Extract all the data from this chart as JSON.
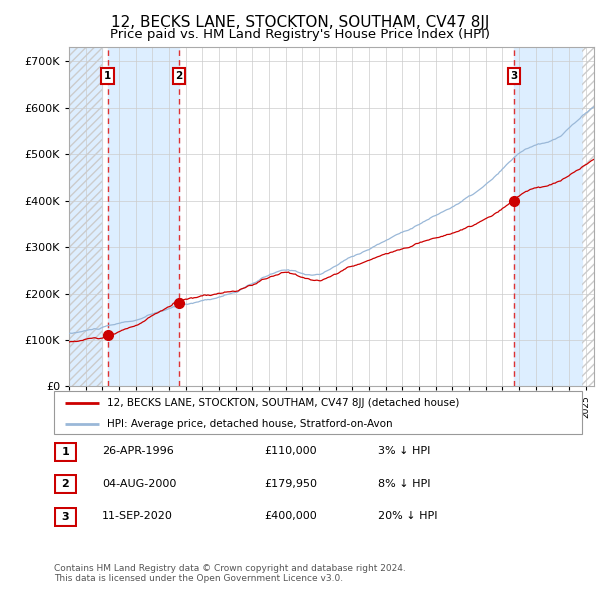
{
  "title": "12, BECKS LANE, STOCKTON, SOUTHAM, CV47 8JJ",
  "subtitle": "Price paid vs. HM Land Registry's House Price Index (HPI)",
  "xlim_start": 1994.0,
  "xlim_end": 2025.5,
  "ylim": [
    0,
    730000
  ],
  "yticks": [
    0,
    100000,
    200000,
    300000,
    400000,
    500000,
    600000,
    700000
  ],
  "ytick_labels": [
    "£0",
    "£100K",
    "£200K",
    "£300K",
    "£400K",
    "£500K",
    "£600K",
    "£700K"
  ],
  "sale_dates": [
    1996.32,
    2000.59,
    2020.7
  ],
  "sale_prices": [
    110000,
    179950,
    400000
  ],
  "sale_labels": [
    "1",
    "2",
    "3"
  ],
  "hpi_color": "#9ab8d8",
  "price_color": "#cc0000",
  "marker_color": "#cc0000",
  "dashed_line_color": "#dd3333",
  "bg_shade_color": "#ddeeff",
  "grid_color": "#cccccc",
  "hatch_color": "#cccccc",
  "title_fontsize": 11,
  "subtitle_fontsize": 9.5,
  "legend_line1": "12, BECKS LANE, STOCKTON, SOUTHAM, CV47 8JJ (detached house)",
  "legend_line2": "HPI: Average price, detached house, Stratford-on-Avon",
  "table_rows": [
    [
      "1",
      "26-APR-1996",
      "£110,000",
      "3% ↓ HPI"
    ],
    [
      "2",
      "04-AUG-2000",
      "£179,950",
      "8% ↓ HPI"
    ],
    [
      "3",
      "11-SEP-2020",
      "£400,000",
      "20% ↓ HPI"
    ]
  ],
  "footer": "Contains HM Land Registry data © Crown copyright and database right 2024.\nThis data is licensed under the Open Government Licence v3.0."
}
